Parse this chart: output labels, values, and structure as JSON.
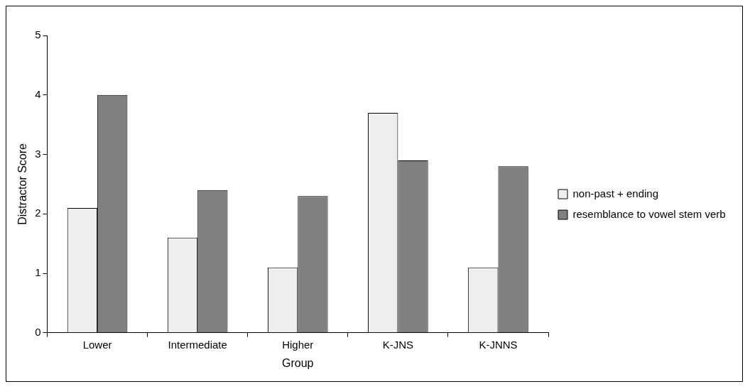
{
  "chart_data": {
    "type": "bar",
    "xlabel": "Group",
    "ylabel": "Distractor Score",
    "categories": [
      "Lower",
      "Intermediate",
      "Higher",
      "K-JNS",
      "K-JNNS"
    ],
    "series": [
      {
        "name": "non-past + ending",
        "color": "#eeeeee",
        "values": [
          2.1,
          1.6,
          1.1,
          3.7,
          1.1
        ]
      },
      {
        "name": "resemblance to vowel stem verb",
        "color": "#808080",
        "values": [
          4.0,
          2.4,
          2.3,
          2.9,
          2.8
        ]
      }
    ],
    "ylim": [
      0,
      5
    ],
    "yticks": [
      0,
      1,
      2,
      3,
      4,
      5
    ],
    "grid": false,
    "legend": "right"
  }
}
